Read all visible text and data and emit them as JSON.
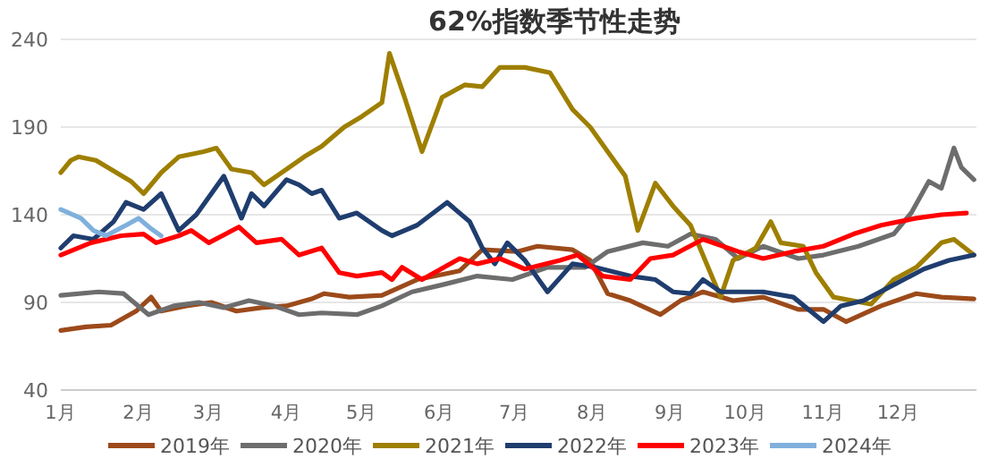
{
  "chart_data": {
    "type": "line",
    "title": "62%指数季节性走势",
    "xlim": [
      "--01-01",
      "--12-31"
    ],
    "xticks": [
      {
        "value": "--01-01",
        "label": "1月"
      },
      {
        "value": "--02-01",
        "label": "2月"
      },
      {
        "value": "--03-01",
        "label": "3月"
      },
      {
        "value": "--04-01",
        "label": "4月"
      },
      {
        "value": "--05-01",
        "label": "5月"
      },
      {
        "value": "--06-01",
        "label": "6月"
      },
      {
        "value": "--07-01",
        "label": "7月"
      },
      {
        "value": "--08-01",
        "label": "8月"
      },
      {
        "value": "--09-01",
        "label": "9月"
      },
      {
        "value": "--10-01",
        "label": "10月"
      },
      {
        "value": "--11-01",
        "label": "11月"
      },
      {
        "value": "--12-01",
        "label": "12月"
      }
    ],
    "ylim": [
      40,
      240
    ],
    "yticks": [
      40,
      90,
      140,
      190,
      240
    ],
    "grid": "y",
    "legend": "bottom",
    "marker": "none",
    "line_style": "solid",
    "series": [
      {
        "name": "2019年",
        "color": "#9c4a1a",
        "x": [
          "--01-01",
          "--01-11",
          "--01-21",
          "--01-31",
          "--02-06",
          "--02-10",
          "--02-20",
          "--03-02",
          "--03-12",
          "--03-22",
          "--04-01",
          "--04-11",
          "--04-16",
          "--04-26",
          "--05-09",
          "--05-23",
          "--06-09",
          "--06-18",
          "--07-02",
          "--07-10",
          "--07-24",
          "--07-31",
          "--08-07",
          "--08-16",
          "--08-28",
          "--09-05",
          "--09-14",
          "--09-26",
          "--10-08",
          "--10-22",
          "--11-01",
          "--11-10",
          "--11-24",
          "--12-08",
          "--12-18",
          "--12-31"
        ],
        "values": [
          74,
          76,
          77,
          85,
          93,
          85,
          88,
          90,
          85,
          87,
          88,
          92,
          95,
          93,
          94,
          103,
          108,
          120,
          119,
          122,
          120,
          114,
          95,
          91,
          83,
          91,
          96,
          91,
          93,
          86,
          86,
          79,
          88,
          95,
          93,
          92
        ]
      },
      {
        "name": "2020年",
        "color": "#6d6d6d",
        "x": [
          "--01-01",
          "--01-16",
          "--01-26",
          "--02-05",
          "--02-15",
          "--02-25",
          "--03-07",
          "--03-17",
          "--03-27",
          "--04-06",
          "--04-15",
          "--04-29",
          "--05-09",
          "--05-21",
          "--06-02",
          "--06-16",
          "--06-30",
          "--07-14",
          "--07-29",
          "--08-07",
          "--08-21",
          "--08-31",
          "--09-09",
          "--09-19",
          "--09-28",
          "--10-08",
          "--10-22",
          "--11-01",
          "--11-15",
          "--11-29",
          "--12-06",
          "--12-13",
          "--12-18",
          "--12-23",
          "--12-26",
          "--12-31"
        ],
        "values": [
          94,
          96,
          95,
          83,
          88,
          90,
          87,
          91,
          88,
          83,
          84,
          83,
          88,
          96,
          100,
          105,
          103,
          110,
          110,
          119,
          124,
          122,
          129,
          126,
          115,
          122,
          115,
          117,
          122,
          129,
          141,
          159,
          155,
          178,
          167,
          160
        ]
      },
      {
        "name": "2021年",
        "color": "#9e7f00",
        "x": [
          "--01-01",
          "--01-05",
          "--01-08",
          "--01-15",
          "--01-29",
          "--02-03",
          "--02-10",
          "--02-17",
          "--02-27",
          "--03-04",
          "--03-10",
          "--03-18",
          "--03-23",
          "--04-01",
          "--04-08",
          "--04-15",
          "--04-24",
          "--05-01",
          "--05-09",
          "--05-12",
          "--05-18",
          "--05-25",
          "--06-02",
          "--06-11",
          "--06-18",
          "--06-25",
          "--07-05",
          "--07-15",
          "--07-24",
          "--07-31",
          "--08-07",
          "--08-14",
          "--08-19",
          "--08-26",
          "--09-02",
          "--09-09",
          "--09-16",
          "--09-21",
          "--09-26",
          "--10-05",
          "--10-11",
          "--10-15",
          "--10-24",
          "--10-29",
          "--11-05",
          "--11-20",
          "--11-29",
          "--12-08",
          "--12-18",
          "--12-23",
          "--12-31"
        ],
        "values": [
          164,
          171,
          173,
          171,
          159,
          152,
          164,
          173,
          176,
          178,
          166,
          164,
          157,
          166,
          173,
          179,
          190,
          196,
          204,
          232,
          207,
          176,
          207,
          214,
          213,
          224,
          224,
          221,
          200,
          190,
          176,
          162,
          131,
          158,
          145,
          134,
          110,
          93,
          114,
          121,
          136,
          124,
          122,
          107,
          93,
          89,
          103,
          110,
          124,
          126,
          117
        ]
      },
      {
        "name": "2022年",
        "color": "#1f3d6e",
        "x": [
          "--01-01",
          "--01-06",
          "--01-14",
          "--01-22",
          "--01-27",
          "--02-03",
          "--02-10",
          "--02-17",
          "--02-24",
          "--03-07",
          "--03-14",
          "--03-18",
          "--03-23",
          "--04-01",
          "--04-06",
          "--04-11",
          "--04-15",
          "--04-22",
          "--04-29",
          "--05-09",
          "--05-13",
          "--05-23",
          "--06-04",
          "--06-13",
          "--06-18",
          "--06-23",
          "--06-28",
          "--07-05",
          "--07-14",
          "--07-24",
          "--08-02",
          "--08-16",
          "--08-26",
          "--09-02",
          "--09-09",
          "--09-14",
          "--09-21",
          "--10-08",
          "--10-20",
          "--11-01",
          "--11-08",
          "--11-17",
          "--11-29",
          "--12-11",
          "--12-21",
          "--12-31"
        ],
        "values": [
          121,
          128,
          126,
          136,
          147,
          143,
          152,
          131,
          140,
          162,
          138,
          152,
          145,
          160,
          157,
          152,
          154,
          138,
          141,
          131,
          128,
          134,
          147,
          136,
          121,
          112,
          124,
          114,
          96,
          112,
          110,
          105,
          103,
          96,
          95,
          103,
          96,
          96,
          93,
          79,
          88,
          91,
          100,
          109,
          114,
          117
        ]
      },
      {
        "name": "2023年",
        "color": "#ff0000",
        "x": [
          "--01-01",
          "--01-13",
          "--01-25",
          "--02-03",
          "--02-08",
          "--02-17",
          "--02-22",
          "--03-01",
          "--03-13",
          "--03-20",
          "--03-30",
          "--04-06",
          "--04-15",
          "--04-22",
          "--04-29",
          "--05-09",
          "--05-13",
          "--05-17",
          "--05-25",
          "--06-09",
          "--06-16",
          "--06-25",
          "--07-05",
          "--07-19",
          "--07-26",
          "--08-05",
          "--08-16",
          "--08-24",
          "--09-02",
          "--09-14",
          "--09-28",
          "--10-08",
          "--10-20",
          "--11-01",
          "--11-13",
          "--11-24",
          "--12-08",
          "--12-18",
          "--12-28"
        ],
        "values": [
          117,
          124,
          128,
          129,
          124,
          128,
          131,
          124,
          133,
          124,
          126,
          117,
          121,
          107,
          105,
          107,
          103,
          110,
          103,
          115,
          112,
          115,
          109,
          114,
          117,
          105,
          103,
          115,
          117,
          126,
          119,
          115,
          119,
          122,
          129,
          134,
          138,
          140,
          141
        ]
      },
      {
        "name": "2024年",
        "color": "#7fb0dc",
        "x": [
          "--01-01",
          "--01-09",
          "--01-14",
          "--01-19",
          "--01-27",
          "--02-01",
          "--02-06",
          "--02-10"
        ],
        "values": [
          143,
          138,
          131,
          128,
          134,
          138,
          132,
          128
        ]
      }
    ]
  }
}
